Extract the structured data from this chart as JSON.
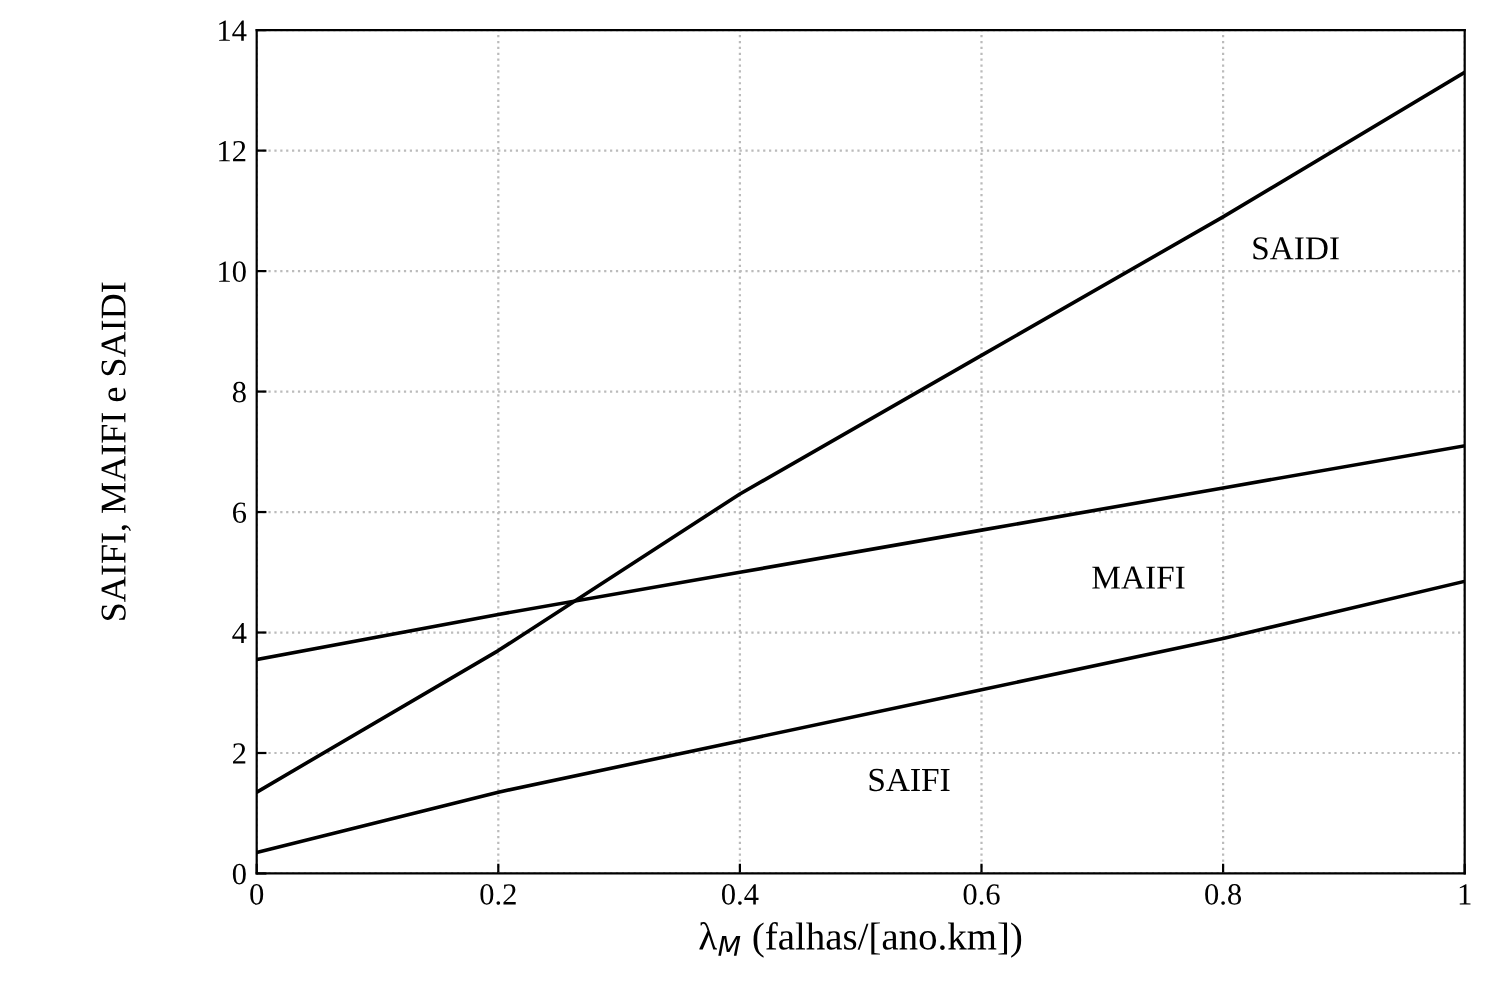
{
  "chart_data": {
    "type": "line",
    "xlabel": "λ$_{M}$ (falhas/[ano.km])",
    "ylabel": "SAIFI, MAIFI e SAIDI",
    "x": [
      0,
      0.2,
      0.4,
      0.6,
      0.8,
      1
    ],
    "series": [
      {
        "name": "SAIDI",
        "color": "#000000",
        "values": [
          1.35,
          3.7,
          6.3,
          8.6,
          10.9,
          13.3
        ]
      },
      {
        "name": "MAIFI",
        "color": "#000000",
        "values": [
          3.55,
          4.3,
          5.0,
          5.7,
          6.4,
          7.1
        ]
      },
      {
        "name": "SAIFI",
        "color": "#000000",
        "values": [
          0.35,
          1.35,
          2.2,
          3.05,
          3.9,
          4.85
        ]
      }
    ],
    "xlim": [
      0,
      1
    ],
    "ylim": [
      0,
      14
    ],
    "xticks": [
      0,
      0.2,
      0.4,
      0.6,
      0.8,
      1
    ],
    "yticks": [
      0,
      2,
      4,
      6,
      8,
      10,
      12,
      14
    ],
    "grid": true,
    "marker": "none",
    "line_style": "solid"
  }
}
